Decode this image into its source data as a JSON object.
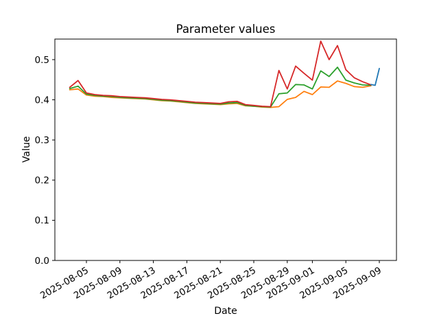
{
  "chart_data": {
    "type": "line",
    "title": "Parameter values",
    "xlabel": "Date",
    "ylabel": "Value",
    "grid": false,
    "legend": "none",
    "background": "#ffffff",
    "axis_color": "#000000",
    "ylim": [
      0,
      0.5512
    ],
    "epoch": "2025-08-05",
    "xlim_days": [
      -3.77,
      37.05
    ],
    "yticks": {
      "values": [
        0.0,
        0.1,
        0.2,
        0.3,
        0.4,
        0.5
      ],
      "labels": [
        "0.0",
        "0.1",
        "0.2",
        "0.3",
        "0.4",
        "0.5"
      ]
    },
    "xticks": [
      "2025-08-05",
      "2025-08-09",
      "2025-08-13",
      "2025-08-17",
      "2025-08-21",
      "2025-08-25",
      "2025-08-29",
      "2025-09-01",
      "2025-09-05",
      "2025-09-09"
    ],
    "xtick_rotation_deg": 30,
    "series": [
      {
        "name": "orange",
        "color": "#ff7f0e",
        "dates": [
          "2025-08-03",
          "2025-08-04",
          "2025-08-05",
          "2025-08-06",
          "2025-08-07",
          "2025-08-08",
          "2025-08-09",
          "2025-08-10",
          "2025-08-11",
          "2025-08-12",
          "2025-08-13",
          "2025-08-14",
          "2025-08-15",
          "2025-08-16",
          "2025-08-17",
          "2025-08-18",
          "2025-08-19",
          "2025-08-20",
          "2025-08-21",
          "2025-08-22",
          "2025-08-23",
          "2025-08-24",
          "2025-08-25",
          "2025-08-26",
          "2025-08-27",
          "2025-08-28",
          "2025-08-29",
          "2025-08-30",
          "2025-08-31",
          "2025-09-01",
          "2025-09-02",
          "2025-09-03",
          "2025-09-04",
          "2025-09-05",
          "2025-09-06",
          "2025-09-07",
          "2025-09-08"
        ],
        "values": [
          0.425,
          0.427,
          0.412,
          0.409,
          0.408,
          0.406,
          0.405,
          0.404,
          0.403,
          0.402,
          0.4,
          0.398,
          0.397,
          0.395,
          0.393,
          0.391,
          0.39,
          0.389,
          0.388,
          0.39,
          0.391,
          0.385,
          0.384,
          0.382,
          0.381,
          0.383,
          0.401,
          0.406,
          0.421,
          0.413,
          0.432,
          0.431,
          0.447,
          0.441,
          0.433,
          0.431,
          0.435
        ]
      },
      {
        "name": "green",
        "color": "#2ca02c",
        "dates": [
          "2025-08-03",
          "2025-08-04",
          "2025-08-05",
          "2025-08-06",
          "2025-08-07",
          "2025-08-08",
          "2025-08-09",
          "2025-08-10",
          "2025-08-11",
          "2025-08-12",
          "2025-08-13",
          "2025-08-14",
          "2025-08-15",
          "2025-08-16",
          "2025-08-17",
          "2025-08-18",
          "2025-08-19",
          "2025-08-20",
          "2025-08-21",
          "2025-08-22",
          "2025-08-23",
          "2025-08-24",
          "2025-08-25",
          "2025-08-26",
          "2025-08-27",
          "2025-08-28",
          "2025-08-29",
          "2025-08-30",
          "2025-08-31",
          "2025-09-01",
          "2025-09-02",
          "2025-09-03",
          "2025-09-04",
          "2025-09-05",
          "2025-09-06",
          "2025-09-07",
          "2025-09-08"
        ],
        "values": [
          0.428,
          0.434,
          0.414,
          0.411,
          0.409,
          0.408,
          0.406,
          0.405,
          0.404,
          0.403,
          0.401,
          0.399,
          0.398,
          0.396,
          0.394,
          0.392,
          0.391,
          0.39,
          0.389,
          0.392,
          0.393,
          0.386,
          0.384,
          0.383,
          0.382,
          0.415,
          0.417,
          0.438,
          0.437,
          0.427,
          0.472,
          0.458,
          0.481,
          0.449,
          0.442,
          0.437,
          0.436
        ]
      },
      {
        "name": "red",
        "color": "#d62728",
        "dates": [
          "2025-08-03",
          "2025-08-04",
          "2025-08-05",
          "2025-08-06",
          "2025-08-07",
          "2025-08-08",
          "2025-08-09",
          "2025-08-10",
          "2025-08-11",
          "2025-08-12",
          "2025-08-13",
          "2025-08-14",
          "2025-08-15",
          "2025-08-16",
          "2025-08-17",
          "2025-08-18",
          "2025-08-19",
          "2025-08-20",
          "2025-08-21",
          "2025-08-22",
          "2025-08-23",
          "2025-08-24",
          "2025-08-25",
          "2025-08-26",
          "2025-08-27",
          "2025-08-28",
          "2025-08-29",
          "2025-08-30",
          "2025-08-31",
          "2025-09-01",
          "2025-09-02",
          "2025-09-03",
          "2025-09-04",
          "2025-09-05",
          "2025-09-06",
          "2025-09-07",
          "2025-09-08"
        ],
        "values": [
          0.431,
          0.448,
          0.417,
          0.413,
          0.411,
          0.41,
          0.408,
          0.407,
          0.406,
          0.405,
          0.403,
          0.401,
          0.4,
          0.398,
          0.396,
          0.394,
          0.393,
          0.392,
          0.391,
          0.395,
          0.396,
          0.388,
          0.386,
          0.384,
          0.383,
          0.473,
          0.427,
          0.484,
          0.466,
          0.449,
          0.546,
          0.5,
          0.535,
          0.475,
          0.455,
          0.445,
          0.437
        ]
      },
      {
        "name": "blue",
        "color": "#1f77b4",
        "dates": [
          "2025-09-08",
          "2025-09-08T12:00",
          "2025-09-09"
        ],
        "values": [
          0.438,
          0.436,
          0.478
        ]
      }
    ]
  }
}
